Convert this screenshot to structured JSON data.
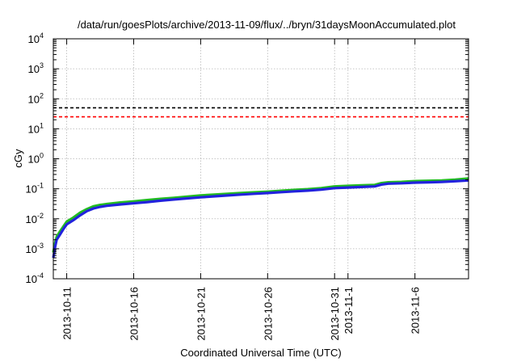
{
  "chart_data": {
    "type": "line",
    "title": "/data/run/goesPlots/archive/2013-11-09/flux/../bryn/31daysMoonAccumulated.plot",
    "xlabel": "Coordinated Universal Time (UTC)",
    "ylabel": "cGy",
    "y_scale": "log",
    "ylim": [
      0.0001,
      10000
    ],
    "xlim": [
      "2013-10-10",
      "2013-11-10"
    ],
    "grid": true,
    "y_ticks": [
      {
        "value": 0.0001,
        "base": "10",
        "exp": "-4"
      },
      {
        "value": 0.001,
        "base": "10",
        "exp": "-3"
      },
      {
        "value": 0.01,
        "base": "10",
        "exp": "-2"
      },
      {
        "value": 0.1,
        "base": "10",
        "exp": "-1"
      },
      {
        "value": 1,
        "base": "10",
        "exp": "0"
      },
      {
        "value": 10,
        "base": "10",
        "exp": "1"
      },
      {
        "value": 100,
        "base": "10",
        "exp": "2"
      },
      {
        "value": 1000,
        "base": "10",
        "exp": "3"
      },
      {
        "value": 10000,
        "base": "10",
        "exp": "4"
      }
    ],
    "x_ticks": [
      {
        "date": "2013-10-11",
        "label": "2013-10-11"
      },
      {
        "date": "2013-10-16",
        "label": "2013-10-16"
      },
      {
        "date": "2013-10-21",
        "label": "2013-10-21"
      },
      {
        "date": "2013-10-26",
        "label": "2013-10-26"
      },
      {
        "date": "2013-10-31",
        "label": "2013-10-31"
      },
      {
        "date": "2013-11-01",
        "label": "2013-11-1"
      },
      {
        "date": "2013-11-06",
        "label": "2013-11-6"
      }
    ],
    "reference_lines": [
      {
        "value": 50,
        "color": "#000000",
        "style": "dashed"
      },
      {
        "value": 25,
        "color": "#ff0000",
        "style": "dashed"
      }
    ],
    "series": [
      {
        "color": "#22bb22",
        "x": [
          "2013-10-10T00:00",
          "2013-10-10T03:00",
          "2013-10-10T06:00",
          "2013-10-10T12:00",
          "2013-10-10T18:00",
          "2013-10-11T00:00",
          "2013-10-11T12:00",
          "2013-10-12T00:00",
          "2013-10-12T12:00",
          "2013-10-13T00:00",
          "2013-10-13T12:00",
          "2013-10-14T00:00",
          "2013-10-15T00:00",
          "2013-10-16T00:00",
          "2013-10-17T00:00",
          "2013-10-18T00:00",
          "2013-10-19T00:00",
          "2013-10-20T00:00",
          "2013-10-21T00:00",
          "2013-10-22T00:00",
          "2013-10-23T00:00",
          "2013-10-24T00:00",
          "2013-10-25T00:00",
          "2013-10-26T00:00",
          "2013-10-27T00:00",
          "2013-10-28T00:00",
          "2013-10-29T00:00",
          "2013-10-30T00:00",
          "2013-10-31T00:00",
          "2013-11-01T00:00",
          "2013-11-02T00:00",
          "2013-11-03T00:00",
          "2013-11-03T12:00",
          "2013-11-04T00:00",
          "2013-11-05T00:00",
          "2013-11-06T00:00",
          "2013-11-07T00:00",
          "2013-11-08T00:00",
          "2013-11-09T00:00",
          "2013-11-10T00:00"
        ],
        "values": [
          0.00075,
          0.0015,
          0.0025,
          0.0038,
          0.0055,
          0.008,
          0.011,
          0.016,
          0.021,
          0.026,
          0.029,
          0.031,
          0.035,
          0.038,
          0.042,
          0.046,
          0.05,
          0.055,
          0.06,
          0.064,
          0.068,
          0.072,
          0.076,
          0.08,
          0.086,
          0.092,
          0.097,
          0.105,
          0.12,
          0.125,
          0.13,
          0.135,
          0.155,
          0.165,
          0.17,
          0.18,
          0.185,
          0.19,
          0.2,
          0.22
        ]
      },
      {
        "color": "#2222dd",
        "x": [
          "2013-10-10T00:00",
          "2013-10-10T03:00",
          "2013-10-10T06:00",
          "2013-10-10T12:00",
          "2013-10-10T18:00",
          "2013-10-11T00:00",
          "2013-10-11T12:00",
          "2013-10-12T00:00",
          "2013-10-12T12:00",
          "2013-10-13T00:00",
          "2013-10-13T12:00",
          "2013-10-14T00:00",
          "2013-10-15T00:00",
          "2013-10-16T00:00",
          "2013-10-17T00:00",
          "2013-10-18T00:00",
          "2013-10-19T00:00",
          "2013-10-20T00:00",
          "2013-10-21T00:00",
          "2013-10-22T00:00",
          "2013-10-23T00:00",
          "2013-10-24T00:00",
          "2013-10-25T00:00",
          "2013-10-26T00:00",
          "2013-10-27T00:00",
          "2013-10-28T00:00",
          "2013-10-29T00:00",
          "2013-10-30T00:00",
          "2013-10-31T00:00",
          "2013-11-01T00:00",
          "2013-11-02T00:00",
          "2013-11-03T00:00",
          "2013-11-03T12:00",
          "2013-11-04T00:00",
          "2013-11-05T00:00",
          "2013-11-06T00:00",
          "2013-11-07T00:00",
          "2013-11-08T00:00",
          "2013-11-09T00:00",
          "2013-11-10T00:00"
        ],
        "values": [
          0.0005,
          0.0011,
          0.002,
          0.003,
          0.0045,
          0.0065,
          0.009,
          0.013,
          0.018,
          0.022,
          0.025,
          0.027,
          0.03,
          0.033,
          0.036,
          0.04,
          0.044,
          0.048,
          0.052,
          0.056,
          0.06,
          0.064,
          0.068,
          0.072,
          0.077,
          0.082,
          0.087,
          0.094,
          0.105,
          0.11,
          0.115,
          0.12,
          0.138,
          0.148,
          0.153,
          0.16,
          0.165,
          0.17,
          0.178,
          0.19
        ]
      }
    ]
  }
}
